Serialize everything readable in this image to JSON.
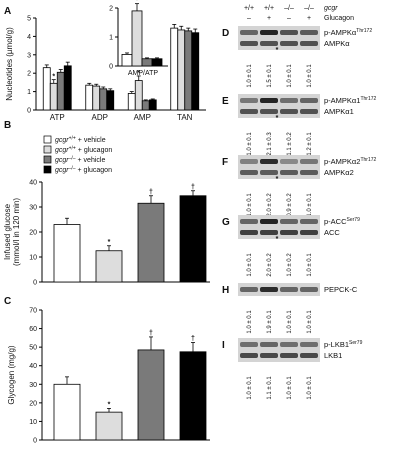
{
  "legend": {
    "items": [
      {
        "genotype": "gcgr",
        "sup": "+/+",
        "treatment": " + vehicle",
        "color": "#ffffff"
      },
      {
        "genotype": "gcgr",
        "sup": "+/+",
        "treatment": " + glucagon",
        "color": "#dddddd"
      },
      {
        "genotype": "gcgr",
        "sup": "–/–",
        "treatment": " + vehicle",
        "color": "#7a7a7a"
      },
      {
        "genotype": "gcgr",
        "sup": "–/–",
        "treatment": " + glucagon",
        "color": "#000000"
      }
    ]
  },
  "chart_data": [
    {
      "panel": "A",
      "type": "bar",
      "ylabel": "Nucleotides (µmol/g)",
      "ylim": [
        0,
        5
      ],
      "yticks": [
        "0",
        "1",
        "2",
        "3",
        "4",
        "5"
      ],
      "categories": [
        "ATP",
        "ADP",
        "AMP",
        "TAN"
      ],
      "series": [
        {
          "values": [
            2.3,
            1.35,
            0.9,
            4.45
          ],
          "errors": [
            0.15,
            0.1,
            0.1,
            0.2
          ],
          "stars": [
            false,
            false,
            false,
            false
          ]
        },
        {
          "values": [
            1.45,
            1.3,
            1.6,
            4.35
          ],
          "errors": [
            0.2,
            0.1,
            0.25,
            0.2
          ],
          "stars": [
            true,
            false,
            true,
            false
          ]
        },
        {
          "values": [
            2.05,
            1.15,
            0.5,
            4.3
          ],
          "errors": [
            0.15,
            0.1,
            0.05,
            0.15
          ],
          "stars": [
            false,
            false,
            false,
            false
          ]
        },
        {
          "values": [
            2.4,
            1.05,
            0.55,
            4.2
          ],
          "errors": [
            0.2,
            0.1,
            0.05,
            0.2
          ],
          "stars": [
            false,
            false,
            false,
            false
          ]
        }
      ]
    },
    {
      "panel": "A-inset",
      "type": "bar",
      "xlabel": "AMP/ATP",
      "ylim": [
        0,
        2
      ],
      "yticks": [
        "0",
        "1",
        "2"
      ],
      "series": [
        {
          "values": [
            0.4
          ],
          "errors": [
            0.05
          ],
          "stars": [
            false
          ]
        },
        {
          "values": [
            1.9
          ],
          "errors": [
            0.25
          ],
          "stars": [
            true
          ]
        },
        {
          "values": [
            0.25
          ],
          "errors": [
            0.03
          ],
          "stars": [
            false
          ]
        },
        {
          "values": [
            0.25
          ],
          "errors": [
            0.03
          ],
          "stars": [
            false
          ]
        }
      ]
    },
    {
      "panel": "B",
      "type": "bar",
      "ylabel": "Infused glucose",
      "ylabel2": "(mmol/l in 120 min)",
      "ylim": [
        0,
        40
      ],
      "yticks": [
        "0",
        "10",
        "20",
        "30",
        "40"
      ],
      "series": [
        {
          "values": [
            23
          ],
          "errors": [
            2.5
          ],
          "mark": ""
        },
        {
          "values": [
            12.5
          ],
          "errors": [
            2
          ],
          "mark": "*"
        },
        {
          "values": [
            31.5
          ],
          "errors": [
            3
          ],
          "mark": "†"
        },
        {
          "values": [
            34.5
          ],
          "errors": [
            2
          ],
          "mark": "†"
        }
      ]
    },
    {
      "panel": "C",
      "type": "bar",
      "ylabel": "Glycogen (mg/g)",
      "ylim": [
        0,
        70
      ],
      "yticks": [
        "0",
        "10",
        "20",
        "30",
        "40",
        "50",
        "60",
        "70"
      ],
      "series": [
        {
          "values": [
            30
          ],
          "errors": [
            4
          ],
          "mark": ""
        },
        {
          "values": [
            15
          ],
          "errors": [
            2
          ],
          "mark": "*"
        },
        {
          "values": [
            48.5
          ],
          "errors": [
            7
          ],
          "mark": "†"
        },
        {
          "values": [
            47.5
          ],
          "errors": [
            5
          ],
          "mark": "†"
        }
      ]
    }
  ],
  "blots": {
    "header": {
      "cols": [
        "+/+",
        "+/+",
        "–/–",
        "–/–"
      ],
      "gcgr": "gcgr",
      "signs": [
        "–",
        "+",
        "–",
        "+"
      ],
      "glucagon": "Glucagon"
    },
    "panels": [
      {
        "letter": "D",
        "labels": [
          "p-AMPKα",
          "AMPKα"
        ],
        "sups": [
          "Thr172",
          ""
        ],
        "values": [
          "1.0 ± 0.1",
          "1.5 ± 0.1",
          "1.0 ± 0.1",
          "1.0 ± 0.1"
        ],
        "star": [
          false,
          true,
          false,
          false
        ],
        "lanes": [
          [
            0.6,
            0.95,
            0.7,
            0.65
          ],
          [
            0.7,
            0.7,
            0.7,
            0.7
          ]
        ]
      },
      {
        "letter": "E",
        "labels": [
          "p-AMPKα1",
          "AMPKα1"
        ],
        "sups": [
          "Thr172",
          ""
        ],
        "values": [
          "1.0 ± 0.1",
          "2.1 ± 0.3",
          "1.1 ± 0.2",
          "1.2 ± 0.1"
        ],
        "star": [
          false,
          true,
          false,
          false
        ],
        "lanes": [
          [
            0.5,
            0.95,
            0.55,
            0.6
          ],
          [
            0.7,
            0.7,
            0.7,
            0.7
          ]
        ]
      },
      {
        "letter": "F",
        "labels": [
          "p-AMPKα2",
          "AMPKα2"
        ],
        "sups": [
          "Thr172",
          ""
        ],
        "values": [
          "1.0 ± 0.1",
          "2.0 ± 0.2",
          "0.9 ± 0.2",
          "1.0 ± 0.1"
        ],
        "star": [
          false,
          true,
          false,
          false
        ],
        "lanes": [
          [
            0.45,
            0.9,
            0.4,
            0.5
          ],
          [
            0.65,
            0.65,
            0.65,
            0.65
          ]
        ]
      },
      {
        "letter": "G",
        "labels": [
          "p-ACC",
          "ACC"
        ],
        "sups": [
          "Ser79",
          ""
        ],
        "values": [
          "1.0 ± 0.1",
          "2.0 ± 0.2",
          "1.0 ± 0.2",
          "1.0 ± 0.1"
        ],
        "star": [
          false,
          true,
          false,
          false
        ],
        "lanes": [
          [
            0.6,
            0.95,
            0.6,
            0.6
          ],
          [
            0.8,
            0.8,
            0.8,
            0.8
          ]
        ]
      },
      {
        "letter": "H",
        "labels": [
          "PEPCK-C"
        ],
        "sups": [
          ""
        ],
        "values": [
          "1.0 ± 0.1",
          "1.9 ± 0.1",
          "1.0 ± 0.1",
          "1.0 ± 0.1"
        ],
        "star": [
          false,
          false,
          false,
          false
        ],
        "lanes": [
          [
            0.6,
            0.9,
            0.6,
            0.6
          ]
        ]
      },
      {
        "letter": "I",
        "labels": [
          "p-LKB1",
          "LKB1"
        ],
        "sups": [
          "Ser79",
          ""
        ],
        "values": [
          "1.0 ± 0.1",
          "1.1 ± 0.1",
          "1.0 ± 0.1",
          "1.0 ± 0.1"
        ],
        "star": [
          false,
          false,
          false,
          false
        ],
        "lanes": [
          [
            0.55,
            0.6,
            0.55,
            0.55
          ],
          [
            0.75,
            0.75,
            0.75,
            0.75
          ]
        ]
      }
    ]
  },
  "colors": {
    "bar_white": "#ffffff",
    "bar_light": "#dddddd",
    "bar_gray": "#7a7a7a",
    "bar_black": "#000000",
    "blot_bg": "#d4d4d4",
    "band": "#1a1a1a"
  }
}
